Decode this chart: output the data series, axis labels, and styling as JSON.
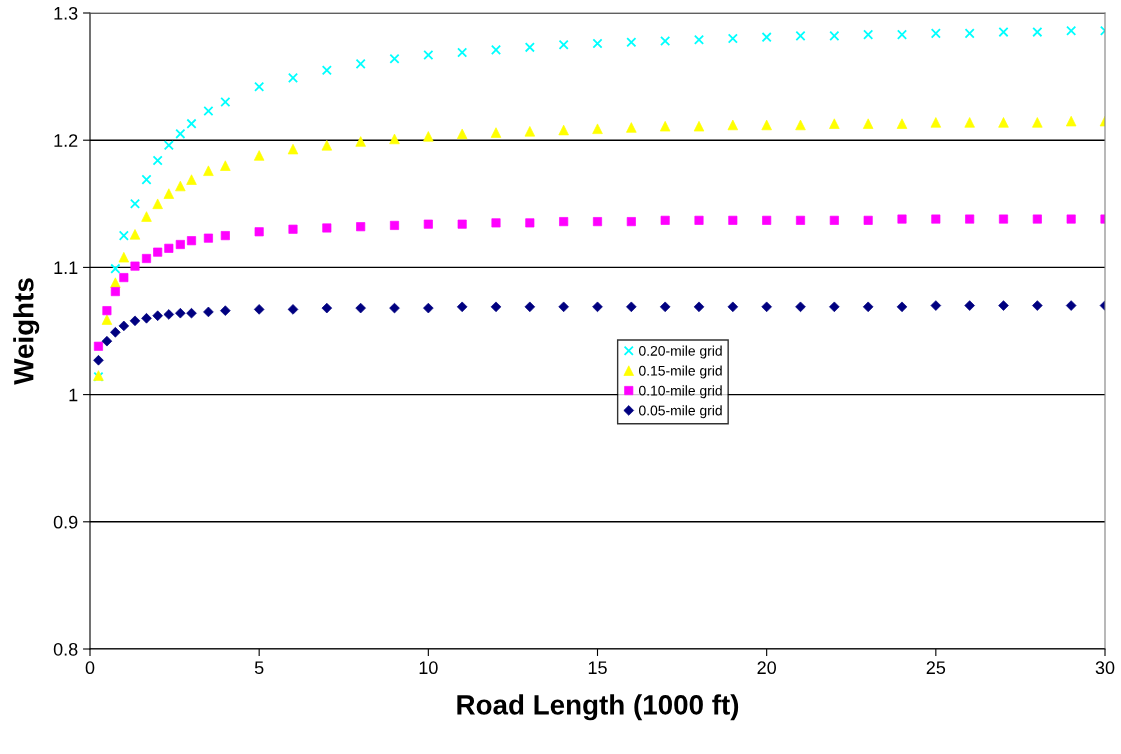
{
  "chart_data": {
    "type": "scatter",
    "xlabel": "Road Length (1000 ft)",
    "ylabel": "Weights",
    "x": [
      0.25,
      0.5,
      0.75,
      1,
      1.33,
      1.67,
      2,
      2.33,
      2.67,
      3,
      3.5,
      4,
      5,
      6,
      7,
      8,
      9,
      10,
      11,
      12,
      13,
      14,
      15,
      16,
      17,
      18,
      19,
      20,
      21,
      22,
      23,
      24,
      25,
      26,
      27,
      28,
      29,
      30
    ],
    "series": [
      {
        "name": "0.20-mile grid",
        "color": "#00ffff",
        "marker": "cross",
        "x": [
          0.25,
          0.75,
          1,
          1.33,
          1.67,
          2,
          2.33,
          2.67,
          3,
          3.5,
          4,
          5,
          6,
          7,
          8,
          9,
          10,
          11,
          12,
          13,
          14,
          15,
          16,
          17,
          18,
          19,
          20,
          21,
          22,
          23,
          24,
          25,
          26,
          27,
          28,
          29,
          30
        ],
        "values": [
          1.014,
          1.099,
          1.125,
          1.15,
          1.169,
          1.184,
          1.196,
          1.205,
          1.213,
          1.223,
          1.23,
          1.242,
          1.249,
          1.255,
          1.26,
          1.264,
          1.267,
          1.269,
          1.271,
          1.273,
          1.275,
          1.276,
          1.277,
          1.278,
          1.279,
          1.28,
          1.281,
          1.282,
          1.282,
          1.283,
          1.283,
          1.284,
          1.284,
          1.285,
          1.285,
          1.286,
          1.286
        ]
      },
      {
        "name": "0.15-mile grid",
        "color": "#ffff00",
        "marker": "triangle",
        "values": [
          1.015,
          1.059,
          1.088,
          1.108,
          1.126,
          1.14,
          1.15,
          1.158,
          1.164,
          1.169,
          1.176,
          1.18,
          1.188,
          1.193,
          1.196,
          1.199,
          1.201,
          1.203,
          1.205,
          1.206,
          1.207,
          1.208,
          1.209,
          1.21,
          1.211,
          1.211,
          1.212,
          1.212,
          1.212,
          1.213,
          1.213,
          1.213,
          1.214,
          1.214,
          1.214,
          1.214,
          1.215,
          1.215
        ]
      },
      {
        "name": "0.10-mile grid",
        "color": "#ff00ff",
        "marker": "square",
        "values": [
          1.038,
          1.066,
          1.081,
          1.092,
          1.101,
          1.107,
          1.112,
          1.115,
          1.118,
          1.121,
          1.123,
          1.125,
          1.128,
          1.13,
          1.131,
          1.132,
          1.133,
          1.134,
          1.134,
          1.135,
          1.135,
          1.136,
          1.136,
          1.136,
          1.137,
          1.137,
          1.137,
          1.137,
          1.137,
          1.137,
          1.137,
          1.138,
          1.138,
          1.138,
          1.138,
          1.138,
          1.138,
          1.138
        ]
      },
      {
        "name": "0.05-mile grid",
        "color": "#000080",
        "marker": "diamond",
        "values": [
          1.027,
          1.042,
          1.049,
          1.054,
          1.058,
          1.06,
          1.062,
          1.063,
          1.064,
          1.064,
          1.065,
          1.066,
          1.067,
          1.067,
          1.068,
          1.068,
          1.068,
          1.068,
          1.069,
          1.069,
          1.069,
          1.069,
          1.069,
          1.069,
          1.069,
          1.069,
          1.069,
          1.069,
          1.069,
          1.069,
          1.069,
          1.069,
          1.07,
          1.07,
          1.07,
          1.07,
          1.07,
          1.07
        ]
      }
    ],
    "xlim": [
      0,
      30
    ],
    "xticks": [
      0,
      5,
      10,
      15,
      20,
      25,
      30
    ],
    "ylim": [
      0.8,
      1.3
    ],
    "yticks": [
      0.8,
      0.9,
      1,
      1.1,
      1.2,
      1.3
    ],
    "grid": "y",
    "legend": "right"
  }
}
